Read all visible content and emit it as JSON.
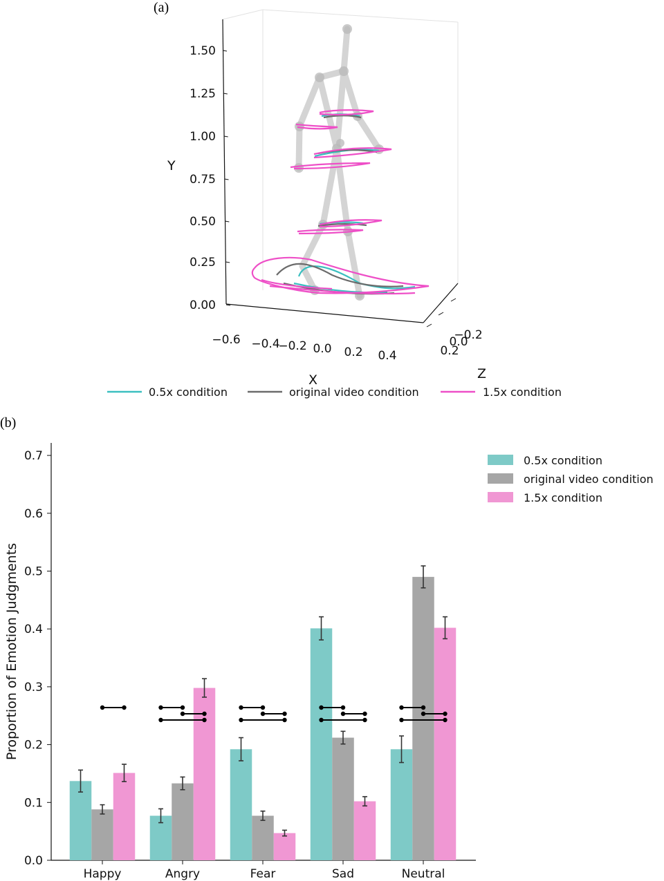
{
  "chart_data": [
    {
      "panel": "(a)",
      "type": "line",
      "subtype": "3d-skeleton-trajectories",
      "xlabel": "X",
      "ylabel": "Y",
      "zlabel": "Z",
      "x_ticks": [
        "−0.6",
        "−0.4",
        "−0.2",
        "0.0",
        "0.2",
        "0.4"
      ],
      "y_ticks": [
        "0.00",
        "0.25",
        "0.50",
        "0.75",
        "1.00",
        "1.25",
        "1.50"
      ],
      "z_ticks": [
        "−0.2",
        "0.0",
        "0.2"
      ],
      "ylim": [
        0,
        1.6
      ],
      "series": [
        {
          "name": "0.5x condition",
          "color": "#3bbfc0"
        },
        {
          "name": "original video condition",
          "color": "#6b6b6b"
        },
        {
          "name": "1.5x condition",
          "color": "#ee4fc7"
        }
      ]
    },
    {
      "panel": "(b)",
      "type": "bar",
      "xlabel": "",
      "ylabel": "Proportion of Emotion Judgments",
      "ylim": [
        0,
        0.72
      ],
      "yticks": [
        "0.0",
        "0.1",
        "0.2",
        "0.3",
        "0.4",
        "0.5",
        "0.6",
        "0.7"
      ],
      "categories": [
        "Happy",
        "Angry",
        "Fear",
        "Sad",
        "Neutral"
      ],
      "series": [
        {
          "name": "0.5x condition",
          "color": "#7ecac7",
          "values": [
            0.137,
            0.077,
            0.192,
            0.401,
            0.192
          ],
          "errors": [
            0.019,
            0.012,
            0.02,
            0.02,
            0.023
          ]
        },
        {
          "name": "original video condition",
          "color": "#a6a6a6",
          "values": [
            0.088,
            0.133,
            0.077,
            0.212,
            0.49
          ],
          "errors": [
            0.008,
            0.011,
            0.008,
            0.011,
            0.019
          ]
        },
        {
          "name": "1.5x condition",
          "color": "#f097d3",
          "values": [
            0.151,
            0.298,
            0.047,
            0.102,
            0.402
          ],
          "errors": [
            0.015,
            0.016,
            0.005,
            0.008,
            0.019
          ]
        }
      ],
      "significance_pairs": [
        [
          [
            1,
            2
          ]
        ],
        [
          [
            0,
            1
          ],
          [
            1,
            2
          ],
          [
            0,
            2
          ]
        ],
        [
          [
            0,
            1
          ],
          [
            1,
            2
          ],
          [
            0,
            2
          ]
        ],
        [
          [
            0,
            1
          ],
          [
            1,
            2
          ],
          [
            0,
            2
          ]
        ],
        [
          [
            0,
            1
          ],
          [
            1,
            2
          ],
          [
            0,
            2
          ]
        ]
      ]
    }
  ]
}
